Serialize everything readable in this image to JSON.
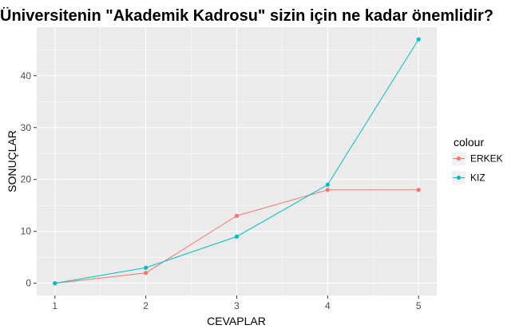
{
  "chart_data": {
    "type": "line",
    "title": "Üniversitenin \"Akademik Kadrosu\" sizin için ne kadar önemlidir?",
    "xlabel": "CEVAPLAR",
    "ylabel": "SONUÇLAR",
    "x": [
      1,
      2,
      3,
      4,
      5
    ],
    "xlim": [
      0.8,
      5.2
    ],
    "ylim": [
      -2.35,
      49.35
    ],
    "x_ticks": [
      "1",
      "2",
      "3",
      "4",
      "5"
    ],
    "y_ticks": [
      0,
      10,
      20,
      30,
      40
    ],
    "y_tick_labels": [
      "0",
      "10",
      "20",
      "30",
      "40"
    ],
    "grid": true,
    "legend_position": "right",
    "legend_title": "colour",
    "background_color": "#EBEBEB",
    "grid_color": "#FFFFFF",
    "series": [
      {
        "name": "ERKEK",
        "color": "#F8766D",
        "values": [
          0,
          2,
          13,
          18,
          18
        ]
      },
      {
        "name": "KIZ",
        "color": "#00BFC4",
        "values": [
          0,
          3,
          9,
          19,
          47
        ]
      }
    ]
  }
}
